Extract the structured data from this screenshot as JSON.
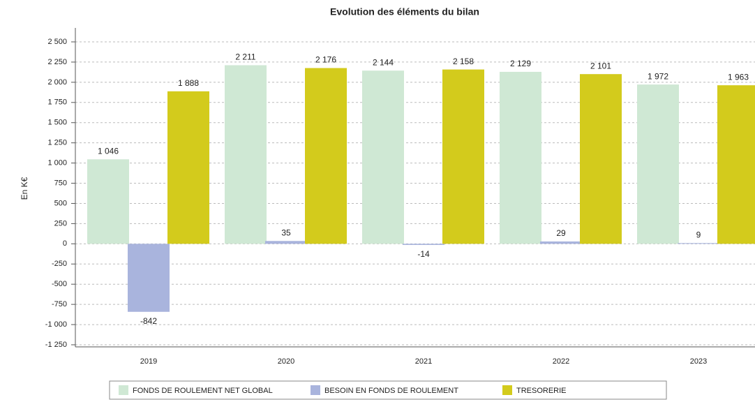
{
  "chart_data": {
    "type": "bar",
    "title": "Evolution des éléments du bilan",
    "y_label": "En K€",
    "categories": [
      "2019",
      "2020",
      "2021",
      "2022",
      "2023"
    ],
    "series": [
      {
        "name": "FONDS DE ROULEMENT NET GLOBAL",
        "color": "#cfe8d4",
        "values": [
          1046,
          2211,
          2144,
          2129,
          1972
        ],
        "value_labels": [
          "1 046",
          "2 211",
          "2 144",
          "2 129",
          "1 972"
        ]
      },
      {
        "name": "BESOIN EN FONDS DE ROULEMENT",
        "color": "#a9b4dd",
        "values": [
          -842,
          35,
          -14,
          29,
          9
        ]
      },
      {
        "name": "TRESORERIE",
        "color": "#d3cb1c",
        "values": [
          1888,
          2176,
          2158,
          2101,
          1963
        ],
        "value_labels": [
          "1 888",
          "2 176",
          "2 158",
          "2 101",
          "1 963"
        ]
      }
    ],
    "ylim": [
      -1250,
      2500
    ],
    "yticks": [
      {
        "value": -1250,
        "label": "-1 250"
      },
      {
        "value": -1000,
        "label": "-1 000"
      },
      -750,
      -500,
      -250,
      0,
      250,
      500,
      750,
      {
        "value": 1000,
        "label": "1 000"
      },
      {
        "value": 1250,
        "label": "1 250"
      },
      {
        "value": 1500,
        "label": "1 500"
      },
      {
        "value": 1750,
        "label": "1 750"
      },
      {
        "value": 2000,
        "label": "2 000"
      },
      {
        "value": 2250,
        "label": "2 250"
      },
      {
        "value": 2500,
        "label": "2 500"
      }
    ],
    "grid": true,
    "legend": "bottom"
  }
}
